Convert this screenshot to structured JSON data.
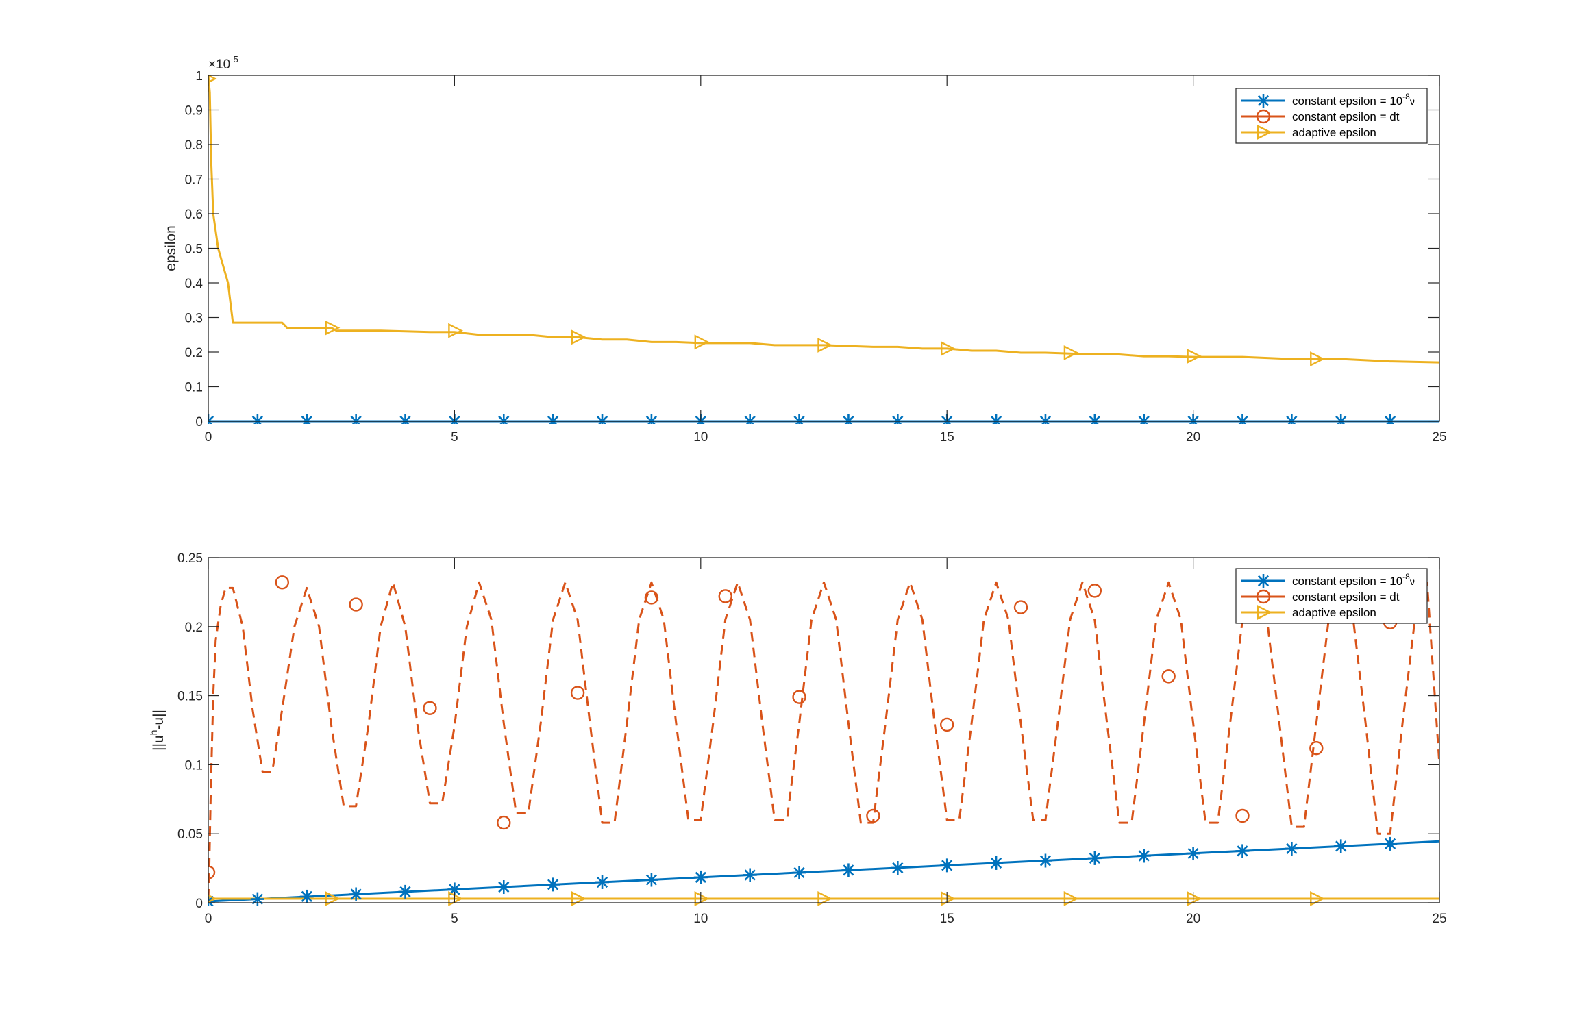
{
  "colors": {
    "blue": "#0072bd",
    "orange": "#d95319",
    "yellow": "#edb120",
    "axis": "#262626"
  },
  "chart_data": [
    {
      "type": "line",
      "xlabel": "",
      "ylabel": "epsilon",
      "xlim": [
        0,
        25
      ],
      "ylim": [
        0,
        1
      ],
      "y_exponent_label": "×10",
      "y_exponent_power": "-5",
      "xticks": [
        "0",
        "5",
        "10",
        "15",
        "20",
        "25"
      ],
      "yticks": [
        "0",
        "0.1",
        "0.2",
        "0.3",
        "0.4",
        "0.5",
        "0.6",
        "0.7",
        "0.8",
        "0.9",
        "1"
      ],
      "grid": false,
      "legend_position": "top-right",
      "legend": [
        {
          "text": "constant epsilon = 10",
          "sup": "-8",
          "tail": "ν",
          "color": "#0072bd",
          "marker": "asterisk"
        },
        {
          "text": "constant epsilon = dt",
          "sup": "",
          "tail": "",
          "color": "#d95319",
          "marker": "circle"
        },
        {
          "text": "adaptive epsilon",
          "sup": "",
          "tail": "",
          "color": "#edb120",
          "marker": "triangle-right"
        }
      ],
      "series": [
        {
          "name": "constant epsilon = 10^-8 ν",
          "color": "#0072bd",
          "style": "solid",
          "marker": "asterisk",
          "x": [
            0,
            25
          ],
          "y": [
            0,
            0
          ],
          "marker_x": [
            0,
            1,
            2,
            3,
            4,
            5,
            6,
            7,
            8,
            9,
            10,
            11,
            12,
            13,
            14,
            15,
            16,
            17,
            18,
            19,
            20,
            21,
            22,
            23,
            24
          ],
          "marker_y": [
            0,
            0,
            0,
            0,
            0,
            0,
            0,
            0,
            0,
            0,
            0,
            0,
            0,
            0,
            0,
            0,
            0,
            0,
            0,
            0,
            0,
            0,
            0,
            0,
            0
          ]
        },
        {
          "name": "adaptive epsilon",
          "color": "#edb120",
          "style": "solid",
          "marker": "triangle-right",
          "x": [
            0,
            0.03,
            0.06,
            0.1,
            0.2,
            0.3,
            0.4,
            0.5,
            1.5,
            1.6,
            2.5,
            2.6,
            3.5,
            4.5,
            5.0,
            5.5,
            6.5,
            7.0,
            7.5,
            8.0,
            8.5,
            9.0,
            9.5,
            10.0,
            11.0,
            11.5,
            12.5,
            13.5,
            14.0,
            14.5,
            15.0,
            15.5,
            16.0,
            16.5,
            17.0,
            18.0,
            18.5,
            19.0,
            19.5,
            20.0,
            21.0,
            22.0,
            23.0,
            24.0,
            25.0
          ],
          "y": [
            1.0,
            0.95,
            0.75,
            0.6,
            0.5,
            0.45,
            0.4,
            0.285,
            0.285,
            0.27,
            0.27,
            0.262,
            0.262,
            0.258,
            0.258,
            0.25,
            0.25,
            0.243,
            0.243,
            0.236,
            0.236,
            0.229,
            0.229,
            0.226,
            0.226,
            0.22,
            0.22,
            0.215,
            0.215,
            0.21,
            0.21,
            0.204,
            0.204,
            0.198,
            0.198,
            0.193,
            0.193,
            0.188,
            0.188,
            0.186,
            0.186,
            0.18,
            0.18,
            0.173,
            0.17
          ],
          "marker_x": [
            0,
            2.5,
            5.0,
            7.5,
            10.0,
            12.5,
            15.0,
            17.5,
            20.0,
            22.5
          ],
          "marker_y": [
            0.99,
            0.27,
            0.262,
            0.243,
            0.229,
            0.22,
            0.21,
            0.198,
            0.188,
            0.18
          ]
        }
      ]
    },
    {
      "type": "line",
      "xlabel": "",
      "ylabel": "||u^h-u||",
      "ylabel_parts": {
        "pre": "||u",
        "sup": "h",
        "post": "-u||"
      },
      "xlim": [
        0,
        25
      ],
      "ylim": [
        0,
        0.25
      ],
      "xticks": [
        "0",
        "5",
        "10",
        "15",
        "20",
        "25"
      ],
      "yticks": [
        "0",
        "0.05",
        "0.1",
        "0.15",
        "0.2",
        "0.25"
      ],
      "grid": false,
      "legend_position": "top-right",
      "legend": [
        {
          "text": "constant epsilon = 10",
          "sup": "-8",
          "tail": "ν",
          "color": "#0072bd",
          "marker": "asterisk"
        },
        {
          "text": "constant epsilon = dt",
          "sup": "",
          "tail": "",
          "color": "#d95319",
          "marker": "circle"
        },
        {
          "text": "adaptive epsilon",
          "sup": "",
          "tail": "",
          "color": "#edb120",
          "marker": "triangle-right"
        }
      ],
      "series": [
        {
          "name": "constant epsilon = 10^-8 ν",
          "color": "#0072bd",
          "style": "solid",
          "marker": "asterisk",
          "x": [
            0,
            25
          ],
          "y": [
            0.001,
            0.0445
          ],
          "marker_x": [
            0,
            1,
            2,
            3,
            4,
            5,
            6,
            7,
            8,
            9,
            10,
            11,
            12,
            13,
            14,
            15,
            16,
            17,
            18,
            19,
            20,
            21,
            22,
            23,
            24
          ],
          "marker_y": [
            0.001,
            0.0027,
            0.0045,
            0.0062,
            0.008,
            0.0097,
            0.0114,
            0.0132,
            0.0149,
            0.0166,
            0.0184,
            0.0201,
            0.0218,
            0.0236,
            0.0253,
            0.0271,
            0.0288,
            0.0305,
            0.0323,
            0.034,
            0.0357,
            0.0375,
            0.0392,
            0.041,
            0.0427
          ]
        },
        {
          "name": "constant epsilon = dt",
          "color": "#d95319",
          "style": "dashed",
          "marker": "circle",
          "x": [
            0,
            0.02,
            0.05,
            0.1,
            0.15,
            0.25,
            0.35,
            0.5,
            0.7,
            0.9,
            1.1,
            1.3,
            1.5,
            1.75,
            2.0,
            2.25,
            2.5,
            2.75,
            3.0,
            3.25,
            3.5,
            3.75,
            4.0,
            4.25,
            4.5,
            4.75,
            5.0,
            5.25,
            5.5,
            5.75,
            6.0,
            6.25,
            6.5,
            6.75,
            7.0,
            7.25,
            7.5,
            7.75,
            8.0,
            8.25,
            8.5,
            8.75,
            9.0,
            9.25,
            9.5,
            9.75,
            10.0,
            10.25,
            10.5,
            10.75,
            11.0,
            11.25,
            11.5,
            11.75,
            12.0,
            12.25,
            12.5,
            12.75,
            13.0,
            13.25,
            13.5,
            13.75,
            14.0,
            14.25,
            14.5,
            14.75,
            15.0,
            15.25,
            15.5,
            15.75,
            16.0,
            16.25,
            16.5,
            16.75,
            17.0,
            17.25,
            17.5,
            17.75,
            18.0,
            18.25,
            18.5,
            18.75,
            19.0,
            19.25,
            19.5,
            19.75,
            20.0,
            20.25,
            20.5,
            20.75,
            21.0,
            21.25,
            21.5,
            21.75,
            22.0,
            22.25,
            22.5,
            22.75,
            23.0,
            23.25,
            23.5,
            23.75,
            24.0,
            24.25,
            24.5,
            24.75,
            25.0
          ],
          "y": [
            0.003,
            0.025,
            0.08,
            0.15,
            0.19,
            0.215,
            0.228,
            0.228,
            0.2,
            0.14,
            0.095,
            0.095,
            0.14,
            0.2,
            0.228,
            0.2,
            0.128,
            0.07,
            0.07,
            0.128,
            0.2,
            0.232,
            0.2,
            0.128,
            0.072,
            0.072,
            0.128,
            0.2,
            0.232,
            0.205,
            0.13,
            0.065,
            0.065,
            0.13,
            0.205,
            0.232,
            0.205,
            0.13,
            0.058,
            0.058,
            0.13,
            0.205,
            0.232,
            0.205,
            0.13,
            0.06,
            0.06,
            0.13,
            0.205,
            0.232,
            0.205,
            0.13,
            0.06,
            0.06,
            0.13,
            0.205,
            0.232,
            0.205,
            0.13,
            0.058,
            0.058,
            0.13,
            0.205,
            0.232,
            0.205,
            0.13,
            0.06,
            0.06,
            0.13,
            0.205,
            0.232,
            0.205,
            0.13,
            0.06,
            0.06,
            0.13,
            0.205,
            0.232,
            0.205,
            0.13,
            0.058,
            0.058,
            0.13,
            0.205,
            0.232,
            0.205,
            0.13,
            0.058,
            0.058,
            0.13,
            0.205,
            0.232,
            0.205,
            0.13,
            0.055,
            0.055,
            0.13,
            0.205,
            0.232,
            0.205,
            0.13,
            0.05,
            0.05,
            0.13,
            0.205,
            0.232,
            0.1
          ],
          "marker_x": [
            0,
            1.5,
            3.0,
            4.5,
            6.0,
            7.5,
            9.0,
            10.5,
            12.0,
            13.5,
            15.0,
            16.5,
            18.0,
            19.5,
            21.0,
            22.5,
            24.0
          ],
          "marker_y": [
            0.022,
            0.232,
            0.216,
            0.141,
            0.058,
            0.152,
            0.221,
            0.222,
            0.149,
            0.063,
            0.129,
            0.214,
            0.226,
            0.164,
            0.063,
            0.112,
            0.203
          ]
        },
        {
          "name": "adaptive epsilon",
          "color": "#edb120",
          "style": "solid",
          "marker": "triangle-right",
          "x": [
            0,
            25
          ],
          "y": [
            0.003,
            0.003
          ],
          "marker_x": [
            0,
            2.5,
            5.0,
            7.5,
            10.0,
            12.5,
            15.0,
            17.5,
            20.0,
            22.5
          ],
          "marker_y": [
            0.003,
            0.003,
            0.003,
            0.003,
            0.003,
            0.003,
            0.003,
            0.003,
            0.003,
            0.003
          ]
        }
      ]
    }
  ]
}
